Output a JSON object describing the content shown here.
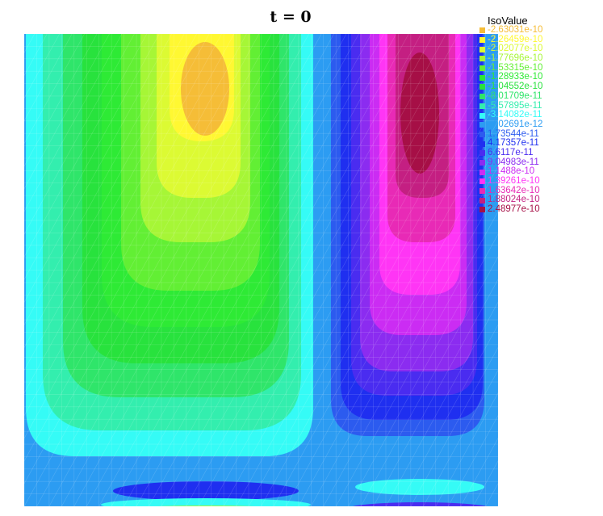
{
  "chart_data": {
    "type": "heatmap",
    "title": "t = 0",
    "legend": {
      "title": "IsoValue",
      "placement": "top-right",
      "entries": [
        {
          "label": "-2.63031e-10",
          "value": -2.63031e-10,
          "color": "#f5bd37"
        },
        {
          "label": "-2.26459e-10",
          "value": -2.26459e-10,
          "color": "#fff832"
        },
        {
          "label": "-2.02077e-10",
          "value": -2.02077e-10,
          "color": "#dcfa33"
        },
        {
          "label": "-1.77696e-10",
          "value": -1.77696e-10,
          "color": "#a6f636"
        },
        {
          "label": "-1.53315e-10",
          "value": -1.53315e-10,
          "color": "#62ef34"
        },
        {
          "label": "-1.28933e-10",
          "value": -1.28933e-10,
          "color": "#2eea35"
        },
        {
          "label": "-1.04552e-10",
          "value": -1.04552e-10,
          "color": "#28e23d"
        },
        {
          "label": "-8.01709e-11",
          "value": -8.01709e-11,
          "color": "#2fe56a"
        },
        {
          "label": "-5.57895e-11",
          "value": -5.57895e-11,
          "color": "#33eeae"
        },
        {
          "label": "-3.14082e-11",
          "value": -3.14082e-11,
          "color": "#35fbf6"
        },
        {
          "label": "-7.02691e-12",
          "value": -7.02691e-12,
          "color": "#2c9cf2"
        },
        {
          "label": "1.73544e-11",
          "value": 1.73544e-11,
          "color": "#2c5bef"
        },
        {
          "label": "4.17357e-11",
          "value": 4.17357e-11,
          "color": "#1f2ff0"
        },
        {
          "label": "6.6117e-11",
          "value": 6.6117e-11,
          "color": "#4a2cf0"
        },
        {
          "label": "9.04983e-11",
          "value": 9.04983e-11,
          "color": "#8b2cf0"
        },
        {
          "label": "1.1488e-10",
          "value": 1.1488e-10,
          "color": "#cb2cf3"
        },
        {
          "label": "1.39261e-10",
          "value": 1.39261e-10,
          "color": "#ff35f5"
        },
        {
          "label": "1.63642e-10",
          "value": 1.63642e-10,
          "color": "#e82ab6"
        },
        {
          "label": "1.88024e-10",
          "value": 1.88024e-10,
          "color": "#c41f82"
        },
        {
          "label": "2.48977e-10",
          "value": 2.48977e-10,
          "color": "#a60f46"
        }
      ]
    },
    "field": {
      "background_color": "#2c9cf2",
      "negative_lobe": {
        "center_level": 0,
        "levels_shown": 10
      },
      "positive_lobe": {
        "center_level": 19,
        "levels_shown": 9
      }
    }
  }
}
